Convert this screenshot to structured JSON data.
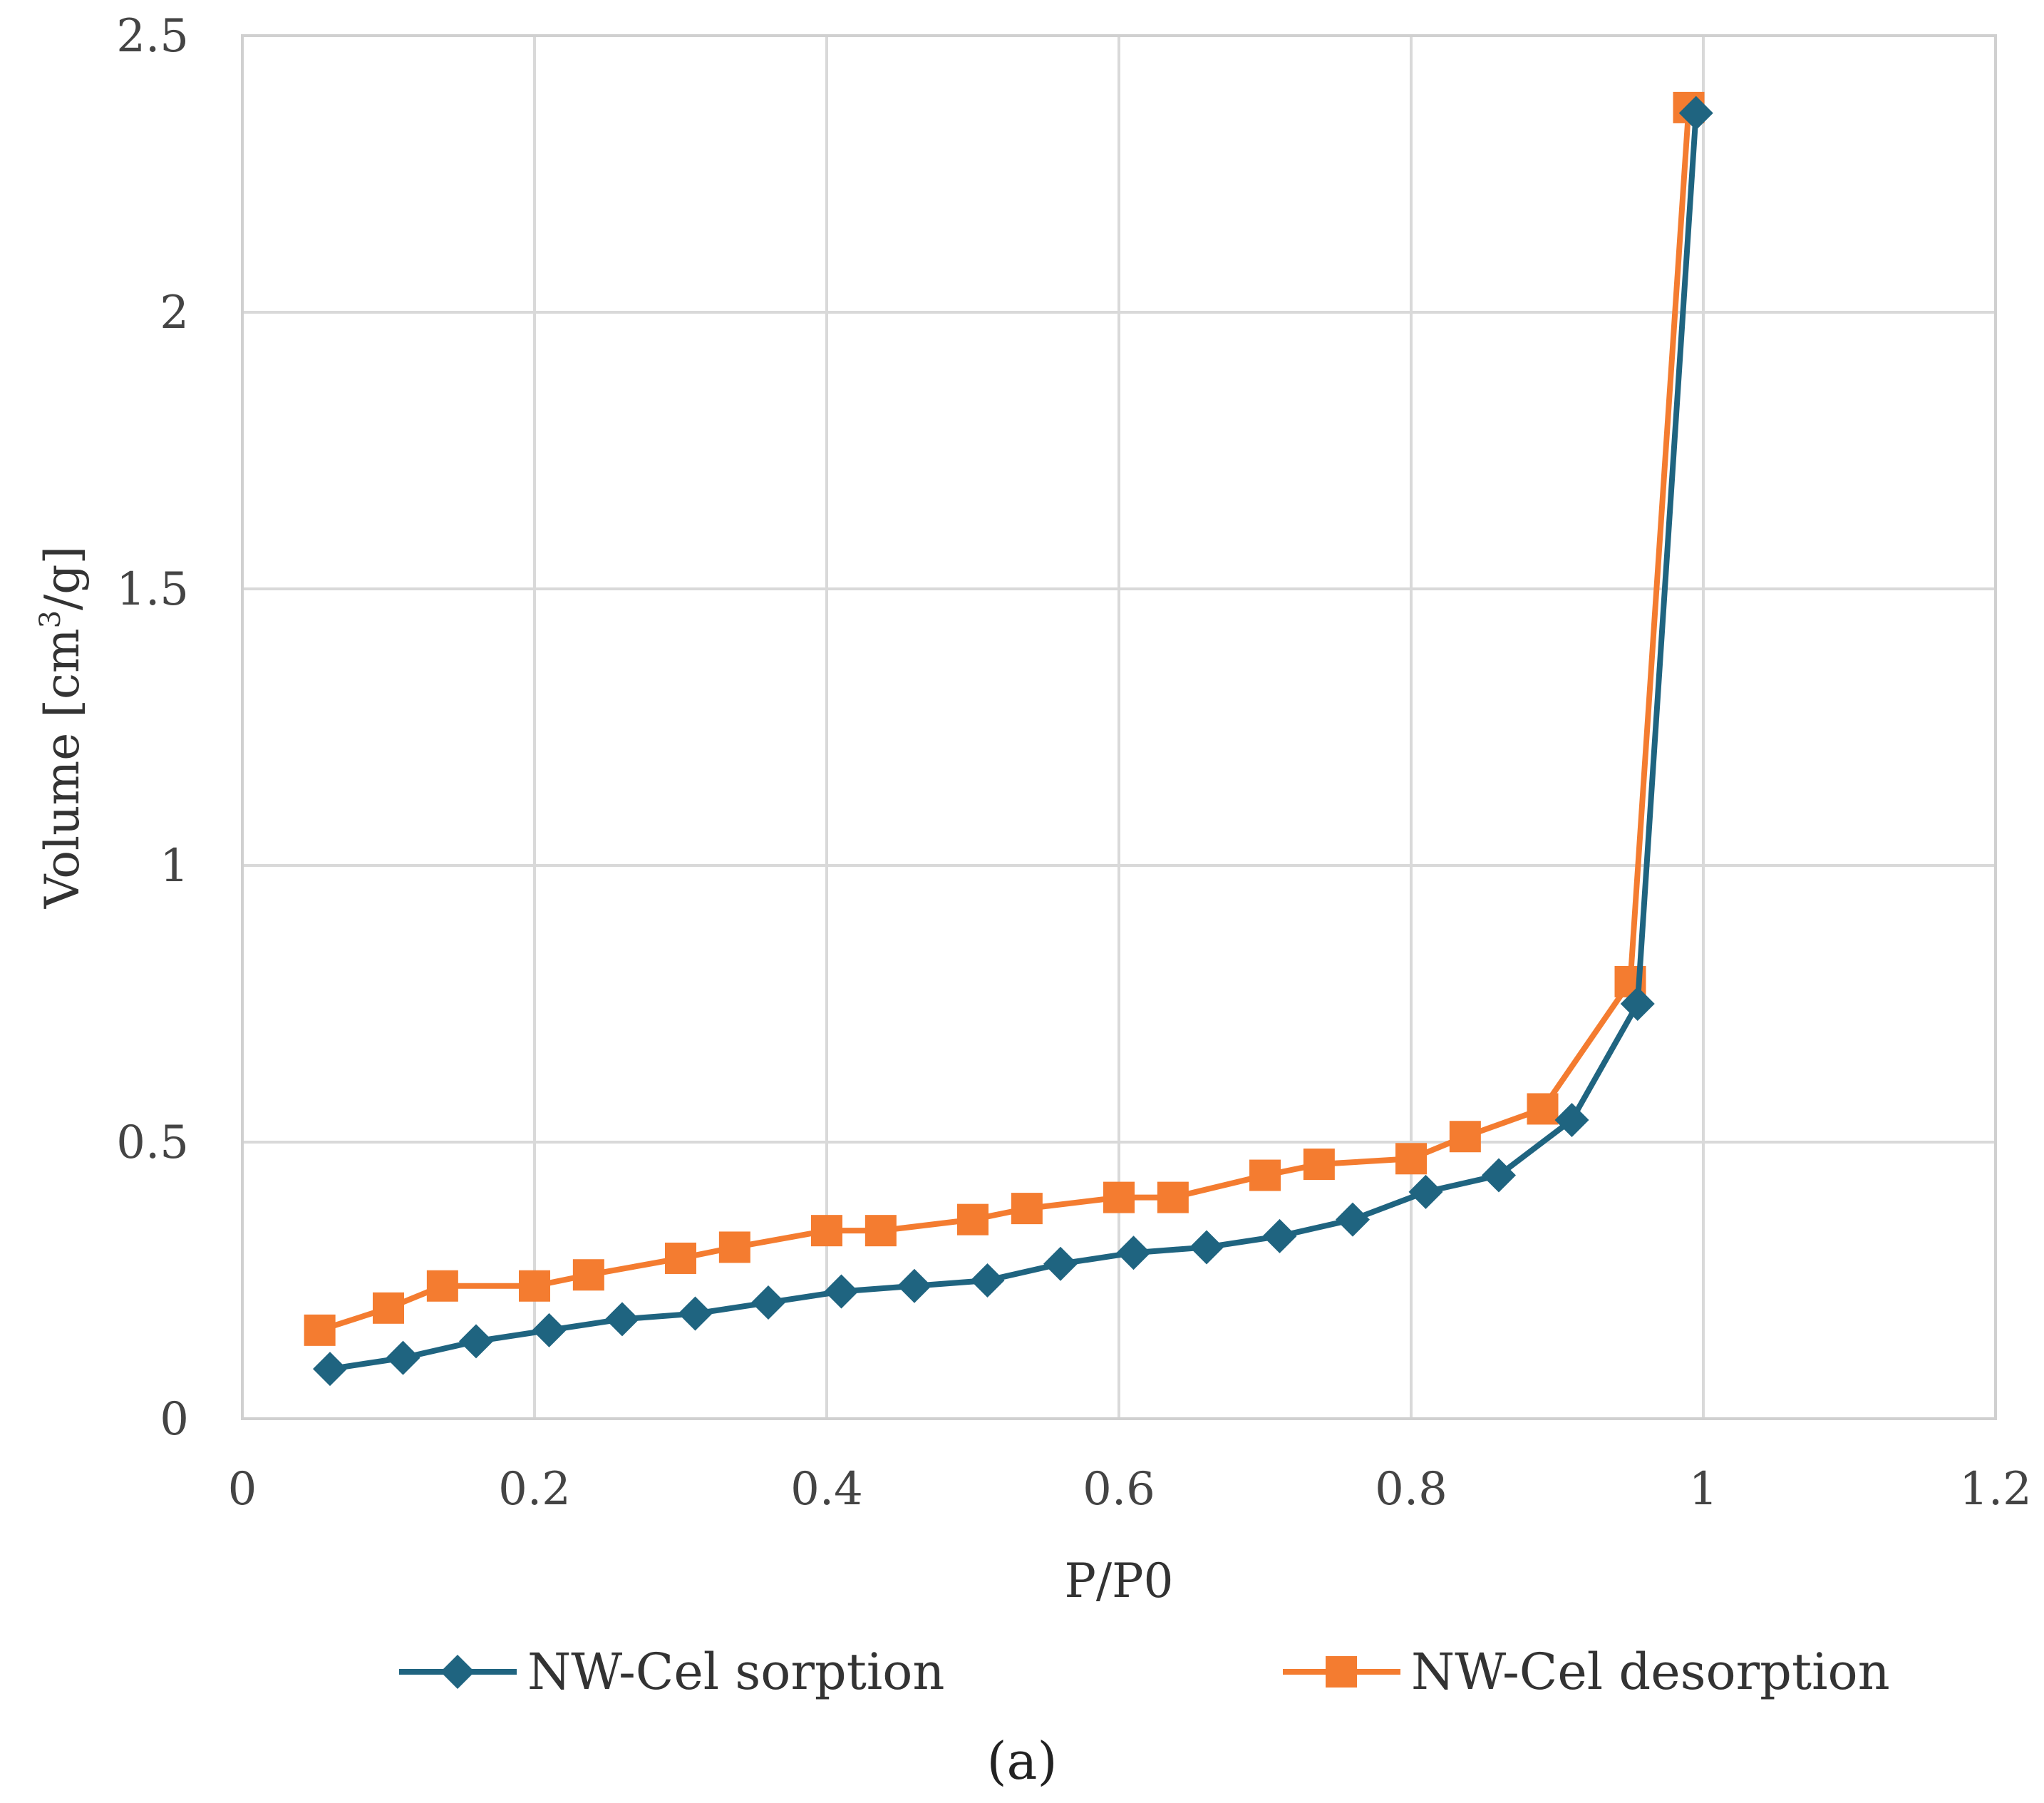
{
  "chart_data": {
    "type": "line",
    "title": "",
    "xlabel": "P/P0",
    "ylabel_main": "Volume [cm",
    "ylabel_sup": "3",
    "ylabel_tail": "/g]",
    "xlim": [
      0,
      1.2
    ],
    "ylim": [
      0,
      2.5
    ],
    "xticks": [
      0,
      0.2,
      0.4,
      0.6,
      0.8,
      1,
      1.2
    ],
    "xtick_labels": [
      "0",
      "0.2",
      "0.4",
      "0.6",
      "0.8",
      "1",
      "1.2"
    ],
    "yticks": [
      0,
      0.5,
      1,
      1.5,
      2,
      2.5
    ],
    "ytick_labels": [
      "0",
      "0.5",
      "1",
      "1.5",
      "2",
      "2.5"
    ],
    "grid": true,
    "legend_position": "bottom",
    "caption": "(a)",
    "series": [
      {
        "name": "NW-Cel sorption",
        "color": "#1f6480",
        "marker": "diamond",
        "x": [
          0.06,
          0.11,
          0.16,
          0.21,
          0.26,
          0.31,
          0.36,
          0.41,
          0.46,
          0.51,
          0.56,
          0.61,
          0.66,
          0.71,
          0.76,
          0.81,
          0.86,
          0.91,
          0.955,
          0.995
        ],
        "y": [
          0.09,
          0.11,
          0.14,
          0.16,
          0.18,
          0.19,
          0.21,
          0.23,
          0.24,
          0.25,
          0.28,
          0.3,
          0.31,
          0.33,
          0.36,
          0.41,
          0.44,
          0.54,
          0.75,
          2.36
        ]
      },
      {
        "name": "NW-Cel desorption",
        "color": "#f47c30",
        "marker": "square",
        "x": [
          0.053,
          0.1,
          0.137,
          0.2,
          0.237,
          0.3,
          0.337,
          0.4,
          0.437,
          0.5,
          0.537,
          0.6,
          0.637,
          0.7,
          0.737,
          0.8,
          0.837,
          0.89,
          0.95,
          0.99
        ],
        "y": [
          0.16,
          0.2,
          0.24,
          0.24,
          0.26,
          0.29,
          0.31,
          0.34,
          0.34,
          0.36,
          0.38,
          0.4,
          0.4,
          0.44,
          0.46,
          0.47,
          0.51,
          0.56,
          0.79,
          2.37
        ]
      }
    ]
  }
}
